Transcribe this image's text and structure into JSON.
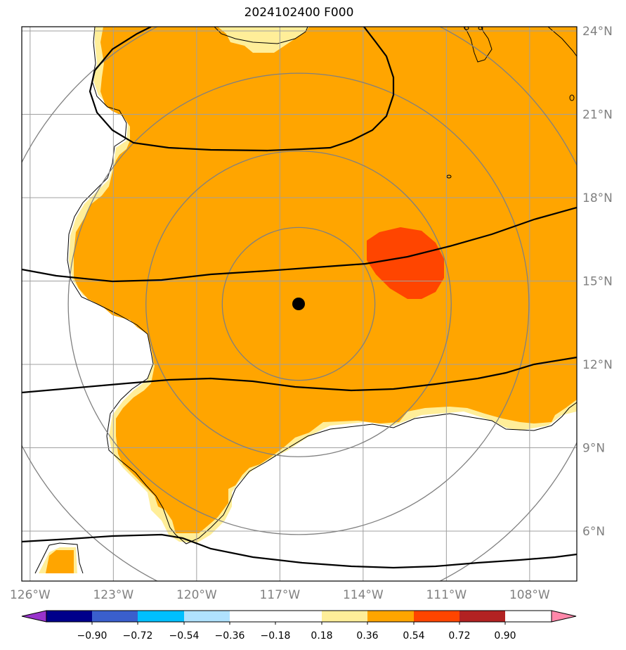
{
  "title": "2024102400 F000",
  "map": {
    "lon_range": [
      -126.0,
      -106.0
    ],
    "lat_range": [
      4.0,
      24.0
    ],
    "lon_ticks": [
      {
        "value": -126,
        "label": "126°W"
      },
      {
        "value": -123,
        "label": "123°W"
      },
      {
        "value": -120,
        "label": "120°W"
      },
      {
        "value": -117,
        "label": "117°W"
      },
      {
        "value": -114,
        "label": "114°W"
      },
      {
        "value": -111,
        "label": "111°W"
      },
      {
        "value": -108,
        "label": "108°W"
      }
    ],
    "lat_ticks": [
      {
        "value": 24,
        "label": "24°N"
      },
      {
        "value": 21,
        "label": "21°N"
      },
      {
        "value": 18,
        "label": "18°N"
      },
      {
        "value": 15,
        "label": "15°N"
      },
      {
        "value": 12,
        "label": "12°N"
      },
      {
        "value": 9,
        "label": "9°N"
      },
      {
        "value": 6,
        "label": "6°N"
      }
    ],
    "center_marker": {
      "lon": -116.7,
      "lat": 14.2
    },
    "range_rings_deg": [
      2.75,
      5.5,
      8.3,
      11.2
    ],
    "colors": {
      "fill_018_036": "#FFEE99",
      "fill_036_054": "#FFA500",
      "fill_054_072": "#FF4500",
      "grid": "#A0A0A0",
      "rings": "#808080",
      "contour": "#000000"
    }
  },
  "colorbar": {
    "colors": [
      "#9933CC",
      "#00008B",
      "#3A5FCD",
      "#00BFFF",
      "#B0E2FF",
      "#FFFFFF",
      "#FFFFFF",
      "#FFEE99",
      "#FFA500",
      "#FF4500",
      "#B22222",
      "#FF88AA"
    ],
    "tick_labels": [
      "−0.90",
      "−0.72",
      "−0.54",
      "−0.36",
      "−0.18",
      "0.18",
      "0.36",
      "0.54",
      "0.72",
      "0.90"
    ]
  }
}
